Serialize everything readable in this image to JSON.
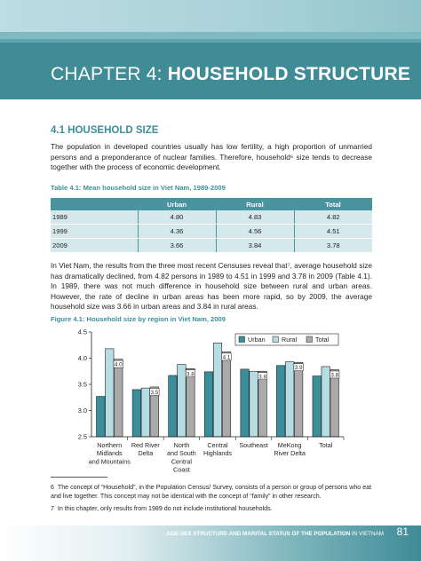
{
  "header": {
    "chapter_label": "CHAPTER 4:",
    "chapter_name": "HOUSEHOLD STRUCTURE"
  },
  "section": {
    "heading": "4.1 HOUSEHOLD SIZE",
    "paragraph1": "The population in developed countries usually has low fertility, a high proportion of unmarried persons and a preponderance of nuclear families. Therefore, household⁶ size tends to decrease together with the process of economic development.",
    "paragraph2": "In Viet Nam, the results from the three most recent Censuses reveal that⁷, average household size has dramatically declined, from 4.82 persons in 1989 to 4.51 in 1999 and 3.78 in 2009 (Table 4.1). In 1989, there was not much difference in household size between rural and urban areas. However, the rate of decline in urban areas has been more rapid, so by 2009, the average household size was 3.66 in urban areas and 3.84 in rural areas."
  },
  "table": {
    "caption": "Table 4.1: Mean household size in Viet Nam, 1989-2009",
    "columns": [
      "",
      "Urban",
      "Rural",
      "Total"
    ],
    "rows": [
      [
        "1989",
        "4.80",
        "4.83",
        "4.82"
      ],
      [
        "1999",
        "4.36",
        "4.56",
        "4.51"
      ],
      [
        "2009",
        "3.66",
        "3.84",
        "3.78"
      ]
    ]
  },
  "figure": {
    "caption": "Figure 4.1: Household size by region in Viet Nam, 2009"
  },
  "chart_data": {
    "type": "bar",
    "categories": [
      [
        "Northern",
        "Midlands",
        "and Mountains"
      ],
      [
        "Red River",
        "Delta"
      ],
      [
        "North",
        "and South",
        "Central",
        "Coast"
      ],
      [
        "Central",
        "Highlands"
      ],
      [
        "Southeast"
      ],
      [
        "MeKong",
        "River Delta"
      ],
      [
        "Total"
      ]
    ],
    "series": [
      {
        "name": "Urban",
        "color": "#3a8f9b",
        "values": [
          3.27,
          3.4,
          3.67,
          3.74,
          3.79,
          3.86,
          3.66
        ]
      },
      {
        "name": "Rural",
        "color": "#b5dde3",
        "values": [
          4.18,
          3.43,
          3.88,
          4.29,
          3.75,
          3.93,
          3.84
        ]
      },
      {
        "name": "Total",
        "color": "#aaaaaa",
        "values": [
          3.98,
          3.45,
          3.8,
          4.12,
          3.75,
          3.92,
          3.78
        ]
      }
    ],
    "total_labels": [
      "4.0",
      "3.5",
      "3.8",
      "4.1",
      "3.8",
      "3.9",
      "3.8"
    ],
    "yticks": [
      "2.5",
      "3.0",
      "3.5",
      "4.0",
      "4.5"
    ],
    "ylim": [
      2.5,
      4.5
    ],
    "legend_position": "top-right",
    "grid": false
  },
  "footnotes": [
    {
      "num": "6",
      "text": "The concept of “Household”, in the Population Census/ Survey, consists of a person or group of persons who eat and live together. This concept may not be identical with the concept of “family” in other research."
    },
    {
      "num": "7",
      "text": "In this chapter, only results from 1989 do not include institutional households."
    }
  ],
  "footer": {
    "title_bold": "AGE-SEX STRUCTURE AND MARITAL STATUS OF THE POPULATION",
    "title_rest": "IN VIETNAM",
    "page_number": "81"
  }
}
